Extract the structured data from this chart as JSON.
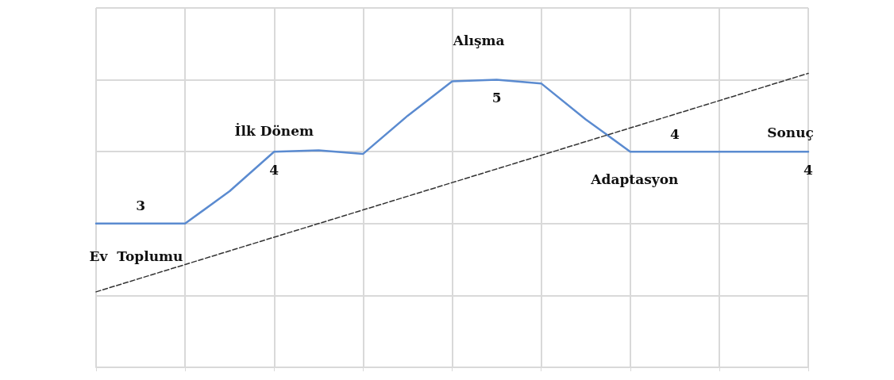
{
  "chart_data": {
    "type": "line",
    "categories": [
      null,
      null,
      null,
      null,
      null,
      null,
      null,
      null,
      null,
      null,
      null,
      null,
      null,
      null,
      null,
      null,
      null
    ],
    "series": [
      {
        "color": "#5b8bd0",
        "values": [
          3.0,
          3,
          3.0,
          3.45,
          4,
          4.02,
          3.97,
          4.5,
          4.98,
          5,
          4.95,
          4.45,
          4.0,
          4,
          4.0,
          4.0,
          4
        ],
        "value_labels": [
          null,
          "3",
          null,
          null,
          "4",
          null,
          null,
          null,
          null,
          "5",
          null,
          null,
          null,
          "4",
          null,
          null,
          "4"
        ]
      },
      {
        "color": "#333333",
        "line_style": "dashed",
        "values": [
          2.05,
          2.24,
          2.43,
          2.62,
          2.81,
          3.0,
          3.19,
          3.38,
          3.57,
          3.76,
          3.95,
          4.14,
          4.33,
          4.52,
          4.71,
          4.9,
          5.09
        ]
      }
    ],
    "annotations": [
      "Ev  Toplumu",
      "İlk Dönem",
      "Alışma",
      "Adaptasyon",
      "Sonuç"
    ],
    "ylim": [
      1,
      6
    ],
    "yticks": [
      {
        "value": 1,
        "label": null
      },
      {
        "value": 2,
        "label": null
      },
      {
        "value": 3,
        "label": null
      },
      {
        "value": 4,
        "label": null
      },
      {
        "value": 5,
        "label": null
      },
      {
        "value": 6,
        "label": null
      }
    ],
    "grid": true,
    "marker": "none"
  }
}
